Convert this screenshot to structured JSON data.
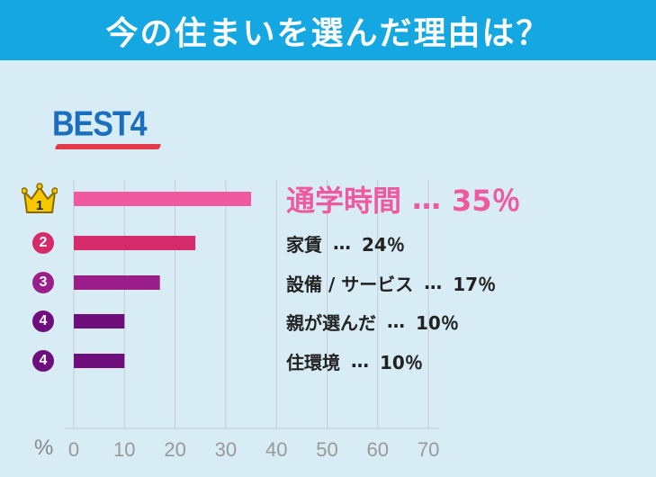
{
  "header": {
    "title": "今の住まいを選んだ理由は？"
  },
  "badge": {
    "text": "BEST4"
  },
  "axis": {
    "unit": "%"
  },
  "colors": {
    "header_bg": "#14a7e2",
    "first": "#ef5a9e",
    "second": "#d62b6b",
    "third": "#9b1f8a",
    "fourth": "#6e0e7c",
    "gold": "#f5c800"
  },
  "items": [
    {
      "rank": "1",
      "label": "通学時間",
      "dots": "…",
      "value_text": "35％"
    },
    {
      "rank": "2",
      "label": "家賃",
      "dots": "…",
      "value_text": "24％"
    },
    {
      "rank": "3",
      "label": "設備 / サービス",
      "dots": "…",
      "value_text": "17％"
    },
    {
      "rank": "4",
      "label": "親が選んだ",
      "dots": "…",
      "value_text": "10％"
    },
    {
      "rank": "4",
      "label": "住環境",
      "dots": "…",
      "value_text": "10％"
    }
  ],
  "chart_data": {
    "type": "bar",
    "orientation": "horizontal",
    "categories": [
      "通学時間",
      "家賃",
      "設備 / サービス",
      "親が選んだ",
      "住環境"
    ],
    "values": [
      35,
      24,
      17,
      10,
      10
    ],
    "xlim": [
      0,
      70
    ],
    "xticks": [
      "0",
      "10",
      "20",
      "30",
      "40",
      "50",
      "60",
      "70"
    ],
    "grid": true
  }
}
